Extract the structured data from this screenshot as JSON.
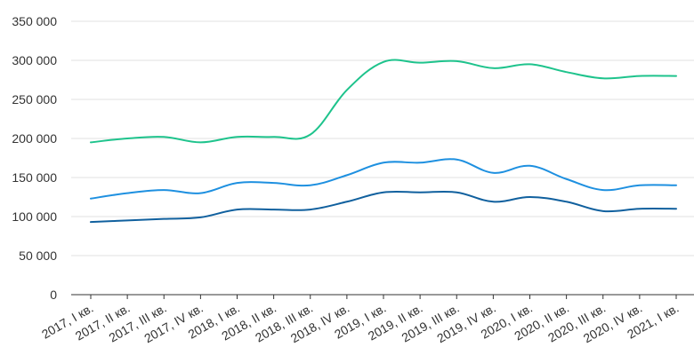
{
  "chart_data": {
    "type": "line",
    "title": "",
    "xlabel": "",
    "ylabel": "",
    "categories": [
      "2017, I кв.",
      "2017, II кв.",
      "2017, III кв.",
      "2017, IV кв.",
      "2018, I кв.",
      "2018, II кв.",
      "2018, III кв.",
      "2018, IV кв.",
      "2019, I кв.",
      "2019, II кв.",
      "2019, III кв.",
      "2019, IV кв.",
      "2020, I кв.",
      "2020, II кв.",
      "2020, III кв.",
      "2020, IV кв.",
      "2021, I кв."
    ],
    "ylim": [
      0,
      350000
    ],
    "yticks": [
      0,
      50000,
      100000,
      150000,
      200000,
      250000,
      300000,
      350000
    ],
    "ytick_labels": [
      "0",
      "50 000",
      "100 000",
      "150 000",
      "200 000",
      "250 000",
      "300 000",
      "350 000"
    ],
    "grid": true,
    "legend": "none",
    "series": [
      {
        "color": "#1ec38c",
        "values": [
          195000,
          200000,
          202000,
          195000,
          202000,
          202000,
          205000,
          262000,
          298000,
          297000,
          299000,
          290000,
          295000,
          285000,
          277000,
          280000,
          280000
        ]
      },
      {
        "color": "#1e90e0",
        "values": [
          123000,
          130000,
          134000,
          130000,
          143000,
          143000,
          140000,
          153000,
          169000,
          169000,
          173000,
          156000,
          165000,
          148000,
          134000,
          140000,
          140000
        ]
      },
      {
        "color": "#10609e",
        "values": [
          93000,
          95000,
          97000,
          99000,
          109000,
          109000,
          109000,
          119000,
          131000,
          131000,
          131000,
          119000,
          125000,
          119000,
          107000,
          110000,
          110000
        ]
      }
    ]
  }
}
